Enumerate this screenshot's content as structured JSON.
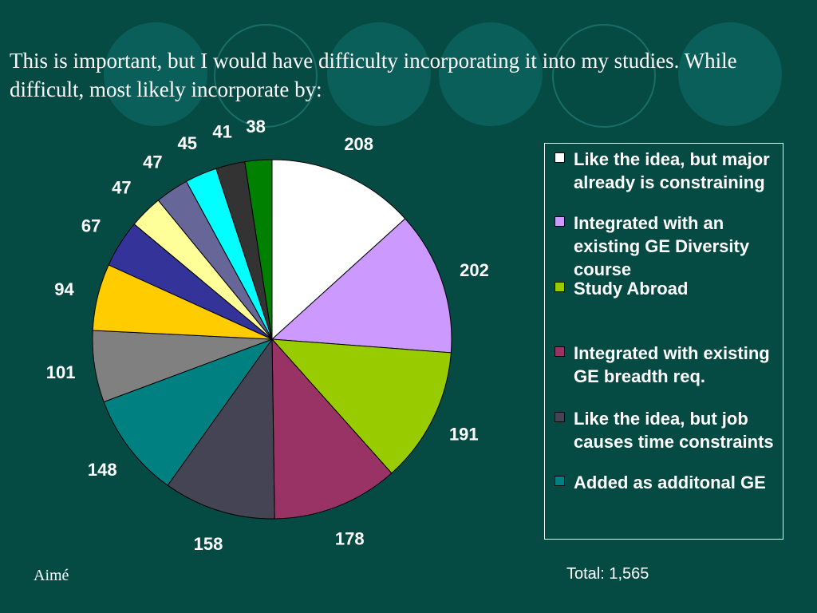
{
  "slide": {
    "title": "This is important, but I would have difficulty incorporating it into my studies.  While difficult, most likely incorporate by:",
    "author": "Aimé",
    "total": "Total: 1,565",
    "background_color": "#064a44"
  },
  "chart_data": {
    "type": "pie",
    "title": "",
    "legend_position": "right",
    "slices": [
      {
        "label": "Like the idea, but major already is constraining",
        "value": 208,
        "color": "#ffffff"
      },
      {
        "label": "Integrated with an existing GE Diversity course",
        "value": 202,
        "color": "#cc99ff"
      },
      {
        "label": "Study Abroad",
        "value": 191,
        "color": "#99cc00"
      },
      {
        "label": "Integrated with existing GE breadth req.",
        "value": 178,
        "color": "#993366"
      },
      {
        "label": "Like the idea, but job causes time constraints",
        "value": 158,
        "color": "#444455"
      },
      {
        "label": "Added as additonal GE",
        "value": 148,
        "color": "#008080"
      },
      {
        "label": "",
        "value": 101,
        "color": "#808080"
      },
      {
        "label": "",
        "value": 94,
        "color": "#ffcc00"
      },
      {
        "label": "",
        "value": 67,
        "color": "#333399"
      },
      {
        "label": "",
        "value": 47,
        "color": "#ffff99"
      },
      {
        "label": "",
        "value": 47,
        "color": "#666699"
      },
      {
        "label": "",
        "value": 45,
        "color": "#00ffff"
      },
      {
        "label": "",
        "value": 41,
        "color": "#333333"
      },
      {
        "label": "",
        "value": 38,
        "color": "#008000"
      }
    ]
  }
}
